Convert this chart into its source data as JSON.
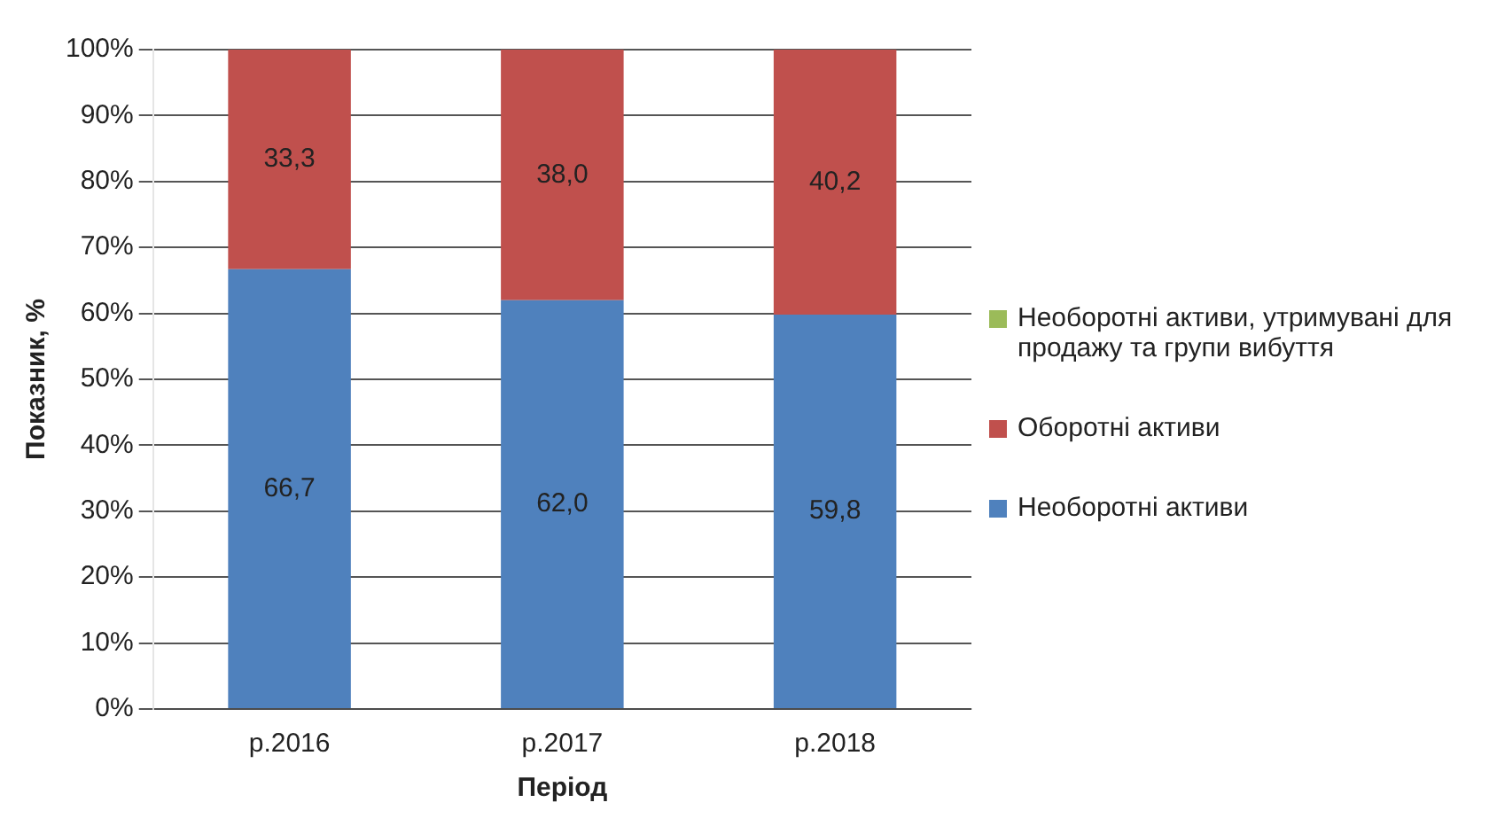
{
  "chart_data": {
    "type": "bar",
    "stacked": true,
    "xlabel": "Період",
    "ylabel": "Показник, %",
    "categories": [
      "р.2016",
      "р.2017",
      "р.2018"
    ],
    "series": [
      {
        "name": "Необоротні активи",
        "color": "#4f81bd",
        "values": [
          66.7,
          62.0,
          59.8
        ],
        "value_labels": [
          "66,7",
          "62,0",
          "59,8"
        ]
      },
      {
        "name": "Оборотні активи",
        "color": "#c0504d",
        "values": [
          33.3,
          38.0,
          40.2
        ],
        "value_labels": [
          "33,3",
          "38,0",
          "40,2"
        ]
      },
      {
        "name": "Необоротні активи, утримувані для продажу та групи вибуття",
        "color": "#9bbb59",
        "values": [
          0,
          0,
          0
        ]
      }
    ],
    "ylim": [
      0,
      100
    ],
    "yticks": [
      {
        "value": 0,
        "label": "0%"
      },
      {
        "value": 10,
        "label": "10%"
      },
      {
        "value": 20,
        "label": "20%"
      },
      {
        "value": 30,
        "label": "30%"
      },
      {
        "value": 40,
        "label": "40%"
      },
      {
        "value": 50,
        "label": "50%"
      },
      {
        "value": 60,
        "label": "60%"
      },
      {
        "value": 70,
        "label": "70%"
      },
      {
        "value": 80,
        "label": "80%"
      },
      {
        "value": 90,
        "label": "90%"
      },
      {
        "value": 100,
        "label": "100%"
      }
    ],
    "grid": "y",
    "legend": "right"
  }
}
